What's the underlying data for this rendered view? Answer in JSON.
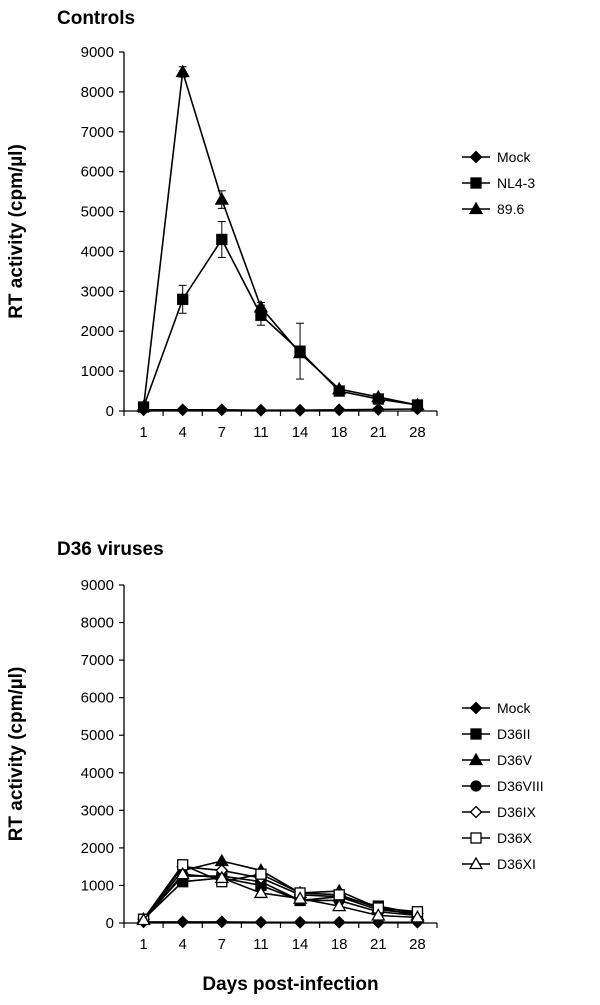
{
  "chart_data": [
    {
      "type": "line",
      "title": "Controls",
      "ylabel": "RT activity (cpm/µl)",
      "xlabel": "",
      "categories": [
        "1",
        "4",
        "7",
        "11",
        "14",
        "18",
        "21",
        "28"
      ],
      "ylim": [
        0,
        9000
      ],
      "yticks": [
        "0",
        "1000",
        "2000",
        "3000",
        "4000",
        "5000",
        "6000",
        "7000",
        "8000",
        "9000"
      ],
      "legend_position": "right",
      "grid": false,
      "series": [
        {
          "name": "Mock",
          "marker": "diamond",
          "fill": "filled",
          "values": [
            30,
            30,
            30,
            20,
            20,
            30,
            40,
            50
          ],
          "errors": [
            0,
            0,
            0,
            0,
            0,
            0,
            0,
            0
          ]
        },
        {
          "name": "NL4-3",
          "marker": "square",
          "fill": "filled",
          "values": [
            100,
            2800,
            4300,
            2400,
            1500,
            500,
            300,
            150
          ],
          "errors": [
            0,
            350,
            450,
            250,
            700,
            80,
            60,
            30
          ]
        },
        {
          "name": "89.6",
          "marker": "triangle",
          "fill": "filled",
          "values": [
            100,
            8500,
            5300,
            2600,
            1450,
            550,
            350,
            150
          ],
          "errors": [
            0,
            130,
            220,
            120,
            0,
            60,
            50,
            30
          ]
        }
      ]
    },
    {
      "type": "line",
      "title": "D36 viruses",
      "ylabel": "RT activity (cpm/µl)",
      "xlabel": "Days post-infection",
      "categories": [
        "1",
        "4",
        "7",
        "11",
        "14",
        "18",
        "21",
        "28"
      ],
      "ylim": [
        0,
        9000
      ],
      "yticks": [
        "0",
        "1000",
        "2000",
        "3000",
        "4000",
        "5000",
        "6000",
        "7000",
        "8000",
        "9000"
      ],
      "legend_position": "right",
      "grid": false,
      "series": [
        {
          "name": "Mock",
          "marker": "diamond",
          "fill": "filled",
          "values": [
            30,
            30,
            30,
            20,
            20,
            20,
            20,
            20
          ]
        },
        {
          "name": "D36II",
          "marker": "square",
          "fill": "filled",
          "values": [
            100,
            1100,
            1200,
            1000,
            600,
            700,
            450,
            250
          ]
        },
        {
          "name": "D36V",
          "marker": "triangle",
          "fill": "filled",
          "values": [
            100,
            1400,
            1650,
            1400,
            800,
            850,
            400,
            200
          ]
        },
        {
          "name": "D36VIII",
          "marker": "circle",
          "fill": "filled",
          "values": [
            100,
            1250,
            1250,
            1100,
            600,
            600,
            300,
            200
          ]
        },
        {
          "name": "D36IX",
          "marker": "diamond",
          "fill": "open",
          "values": [
            100,
            1500,
            1400,
            1200,
            750,
            700,
            350,
            250
          ]
        },
        {
          "name": "D36X",
          "marker": "square",
          "fill": "open",
          "values": [
            100,
            1550,
            1100,
            1300,
            800,
            750,
            400,
            300
          ]
        },
        {
          "name": "D36XI",
          "marker": "triangle",
          "fill": "open",
          "values": [
            80,
            1300,
            1200,
            800,
            650,
            450,
            200,
            150
          ]
        }
      ]
    }
  ]
}
